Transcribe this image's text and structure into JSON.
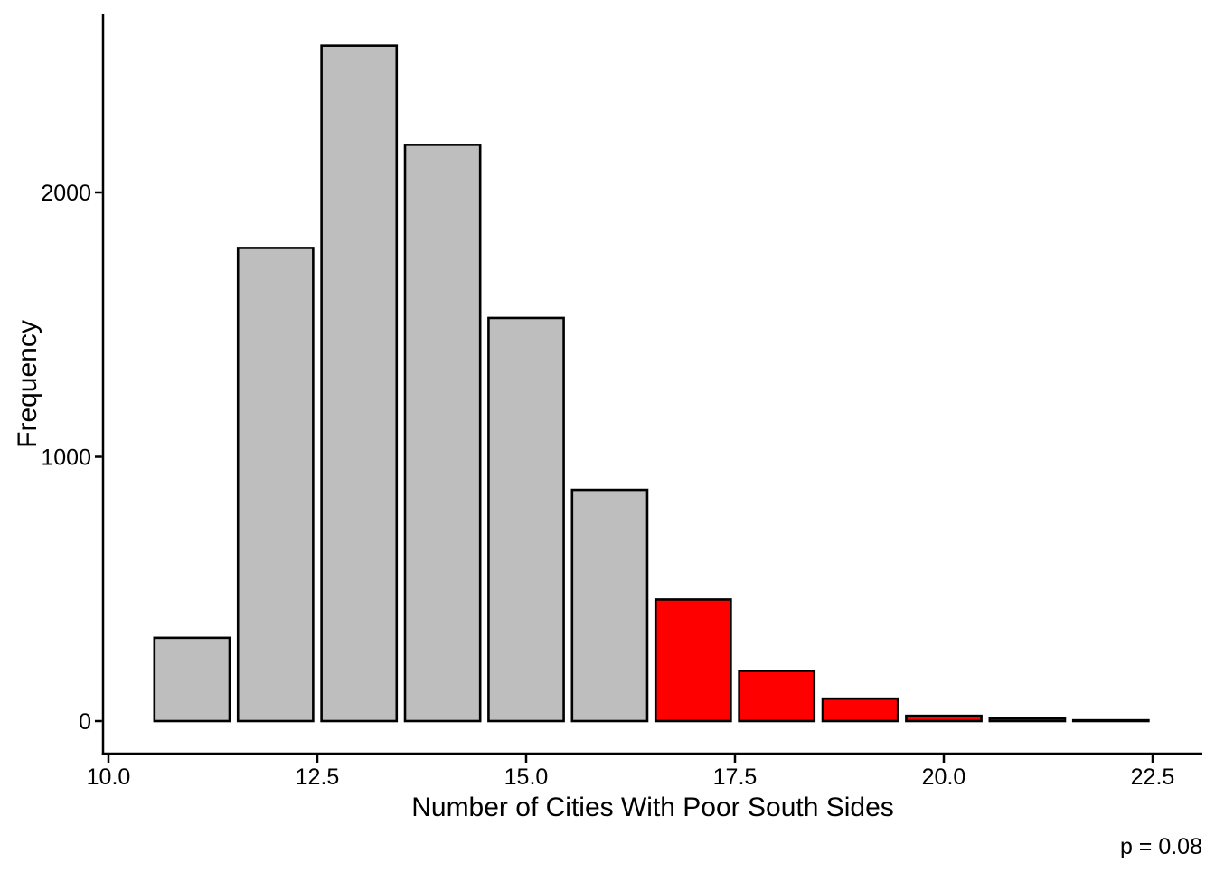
{
  "chart_data": {
    "type": "bar",
    "title": "",
    "xlabel": "Number of Cities With Poor South Sides",
    "ylabel": "Frequency",
    "annotation": "p = 0.08",
    "bar_centers": [
      11,
      12,
      13,
      14,
      15,
      16,
      17,
      18,
      19,
      20,
      21,
      22
    ],
    "bar_width": 0.9,
    "values": [
      315,
      1790,
      2555,
      2180,
      1525,
      875,
      460,
      190,
      85,
      20,
      10,
      3
    ],
    "bar_colors": [
      "#BEBEBE",
      "#BEBEBE",
      "#BEBEBE",
      "#BEBEBE",
      "#BEBEBE",
      "#BEBEBE",
      "#FF0000",
      "#FF0000",
      "#FF0000",
      "#FF0000",
      "#FF0000",
      "#FF0000"
    ],
    "outline_color": "#000000",
    "x_ticks": [
      10.0,
      12.5,
      15.0,
      17.5,
      20.0,
      22.5
    ],
    "x_tick_labels": [
      "10.0",
      "12.5",
      "15.0",
      "17.5",
      "20.0",
      "22.5"
    ],
    "y_ticks": [
      0,
      1000,
      2000
    ],
    "y_tick_labels": [
      "0",
      "1000",
      "2000"
    ],
    "xlim": [
      9.95,
      23.1
    ],
    "ylim": [
      -127,
      2677
    ],
    "grid": "off",
    "legend": "none"
  }
}
